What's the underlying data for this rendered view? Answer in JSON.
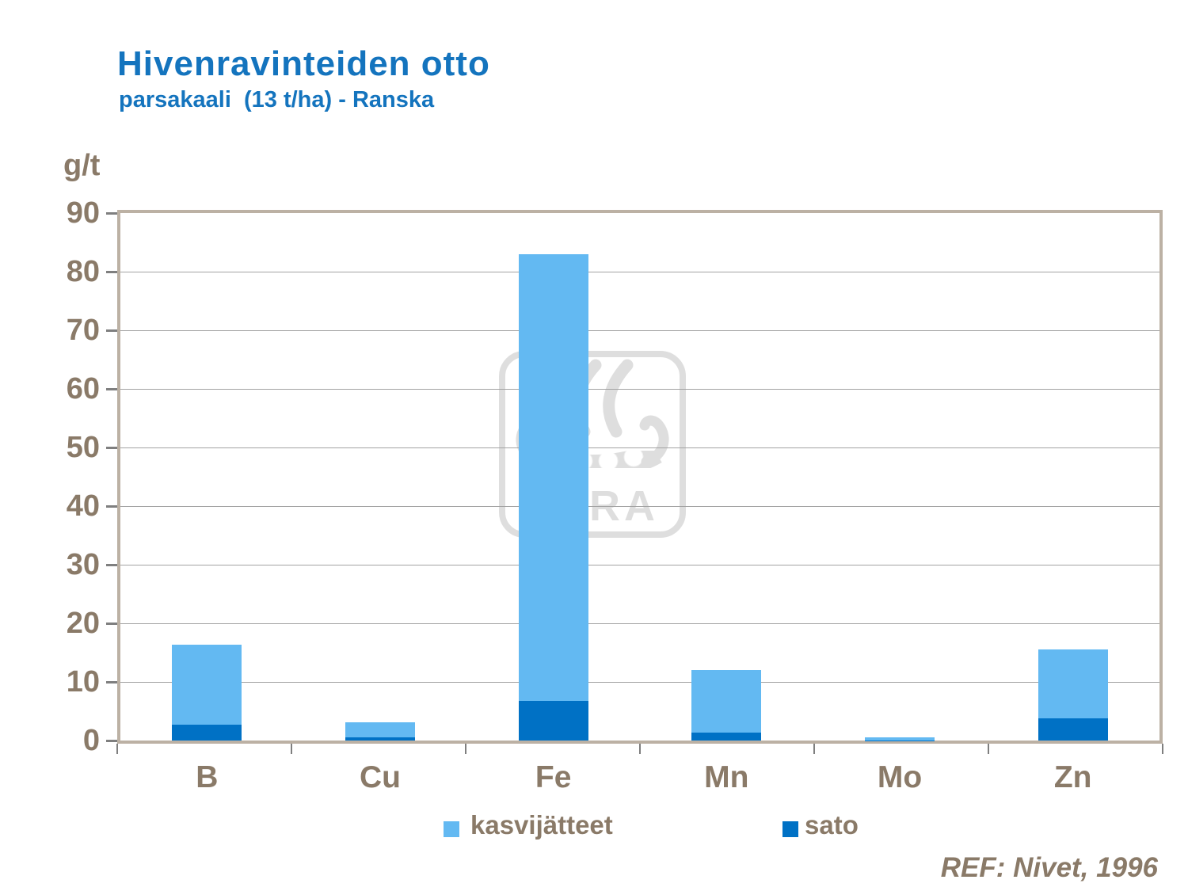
{
  "title": "Hivenravinteiden otto",
  "subtitle": "parsakaali  (13 t/ha) - Ranska",
  "y_axis_unit_label": "g/t",
  "ref": "REF: Nivet, 1996",
  "watermark": {
    "icon": "yara-viking-ship-logo",
    "text": "YARA"
  },
  "colors": {
    "title_blue": "#1474BE",
    "text_brown": "#8A7A68",
    "bar_light_blue": "#63B9F2",
    "bar_dark_blue": "#0071C5",
    "plot_border_taupe": "#BCB1A4",
    "gridline_gray": "#A3A3A3",
    "tick_gray": "#7F7F7F",
    "watermark_gray": "#808080"
  },
  "legend": [
    {
      "label": "kasvijätteet",
      "color": "#63B9F2"
    },
    {
      "label": "sato",
      "color": "#0071C5"
    }
  ],
  "chart_data": {
    "type": "bar",
    "stacked": true,
    "title": "Hivenravinteiden otto",
    "subtitle": "parsakaali (13 t/ha) - Ranska",
    "ylabel": "g/t",
    "xlabel": "",
    "ylim": [
      0,
      90
    ],
    "ytick_interval": 10,
    "yticks": [
      90,
      80,
      70,
      60,
      50,
      40,
      30,
      20,
      10,
      0
    ],
    "grid": true,
    "legend_position": "bottom",
    "categories": [
      "B",
      "Cu",
      "Fe",
      "Mn",
      "Mo",
      "Zn"
    ],
    "series": [
      {
        "name": "sato",
        "color": "#0071C5",
        "values": [
          2.7,
          0.5,
          6.8,
          1.3,
          0.05,
          3.8
        ]
      },
      {
        "name": "kasvijätteet",
        "color": "#63B9F2",
        "values": [
          13.7,
          2.6,
          76.2,
          10.7,
          0.55,
          11.7
        ]
      }
    ],
    "totals": [
      16.4,
      3.1,
      83,
      12,
      0.6,
      15.5
    ],
    "annotations": [
      "REF: Nivet, 1996"
    ]
  }
}
